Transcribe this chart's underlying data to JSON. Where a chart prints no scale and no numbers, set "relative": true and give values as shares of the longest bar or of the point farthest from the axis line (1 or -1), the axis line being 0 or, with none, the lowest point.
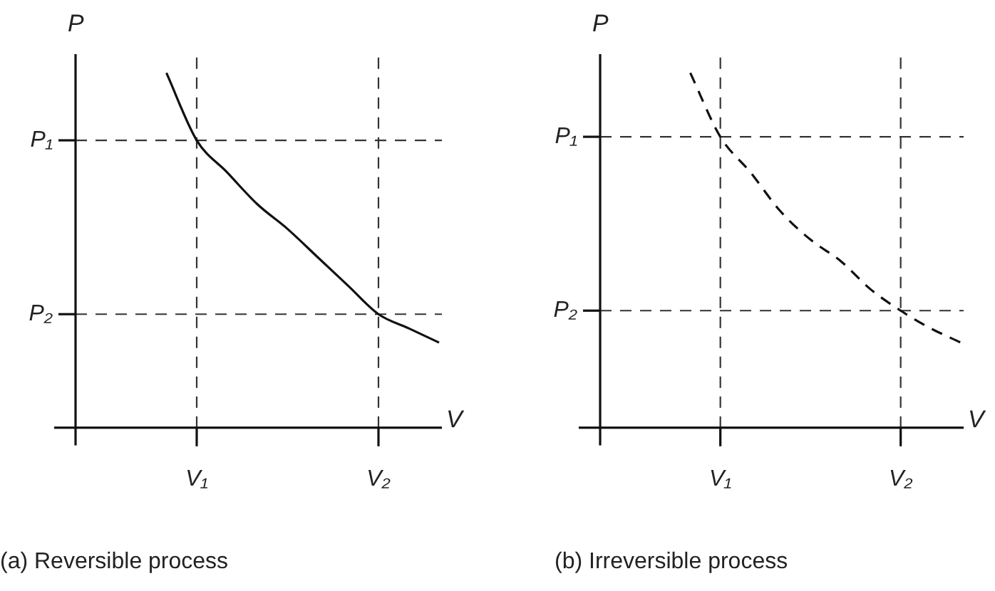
{
  "chart_data": [
    {
      "type": "line",
      "title": "(a) Reversible process",
      "xlabel": "V",
      "ylabel": "P",
      "relative": true,
      "categories": [
        null,
        null,
        null,
        null,
        "V₁",
        null,
        null,
        null,
        null,
        null,
        "V₂",
        null,
        null
      ],
      "series": [
        {
          "color": "#111111",
          "line_style": "solid",
          "values": [
            null,
            null,
            null,
            1,
            0.81,
            0.72,
            0.63,
            0.56,
            0.48,
            0.4,
            0.32,
            0.28,
            0.24
          ]
        }
      ],
      "ref_lines": [
        {
          "axis": "x",
          "value": "V₁",
          "line_style": "dashed",
          "color": "#333333"
        },
        {
          "axis": "x",
          "value": "V₂",
          "line_style": "dashed",
          "color": "#333333"
        },
        {
          "axis": "y",
          "value": 0.81,
          "label": "P₁",
          "line_style": "dashed",
          "color": "#333333"
        },
        {
          "axis": "y",
          "value": 0.32,
          "label": "P₂",
          "line_style": "dashed",
          "color": "#333333"
        }
      ],
      "marker": "none",
      "legend": false
    },
    {
      "type": "line",
      "title": "(b) Irreversible process",
      "xlabel": "V",
      "ylabel": "P",
      "relative": true,
      "categories": [
        null,
        null,
        null,
        null,
        "V₁",
        null,
        null,
        null,
        null,
        null,
        "V₂",
        null,
        null
      ],
      "series": [
        {
          "color": "#111111",
          "line_style": "dashed",
          "values": [
            null,
            null,
            null,
            1,
            0.82,
            0.72,
            0.61,
            0.53,
            0.47,
            0.39,
            0.33,
            0.28,
            0.24
          ]
        }
      ],
      "ref_lines": [
        {
          "axis": "x",
          "value": "V₁",
          "line_style": "dashed",
          "color": "#333333"
        },
        {
          "axis": "x",
          "value": "V₂",
          "line_style": "dashed",
          "color": "#333333"
        },
        {
          "axis": "y",
          "value": 0.82,
          "label": "P₁",
          "line_style": "dashed",
          "color": "#333333"
        },
        {
          "axis": "y",
          "value": 0.33,
          "label": "P₂",
          "line_style": "dashed",
          "color": "#333333"
        }
      ],
      "marker": "none",
      "legend": false
    }
  ]
}
